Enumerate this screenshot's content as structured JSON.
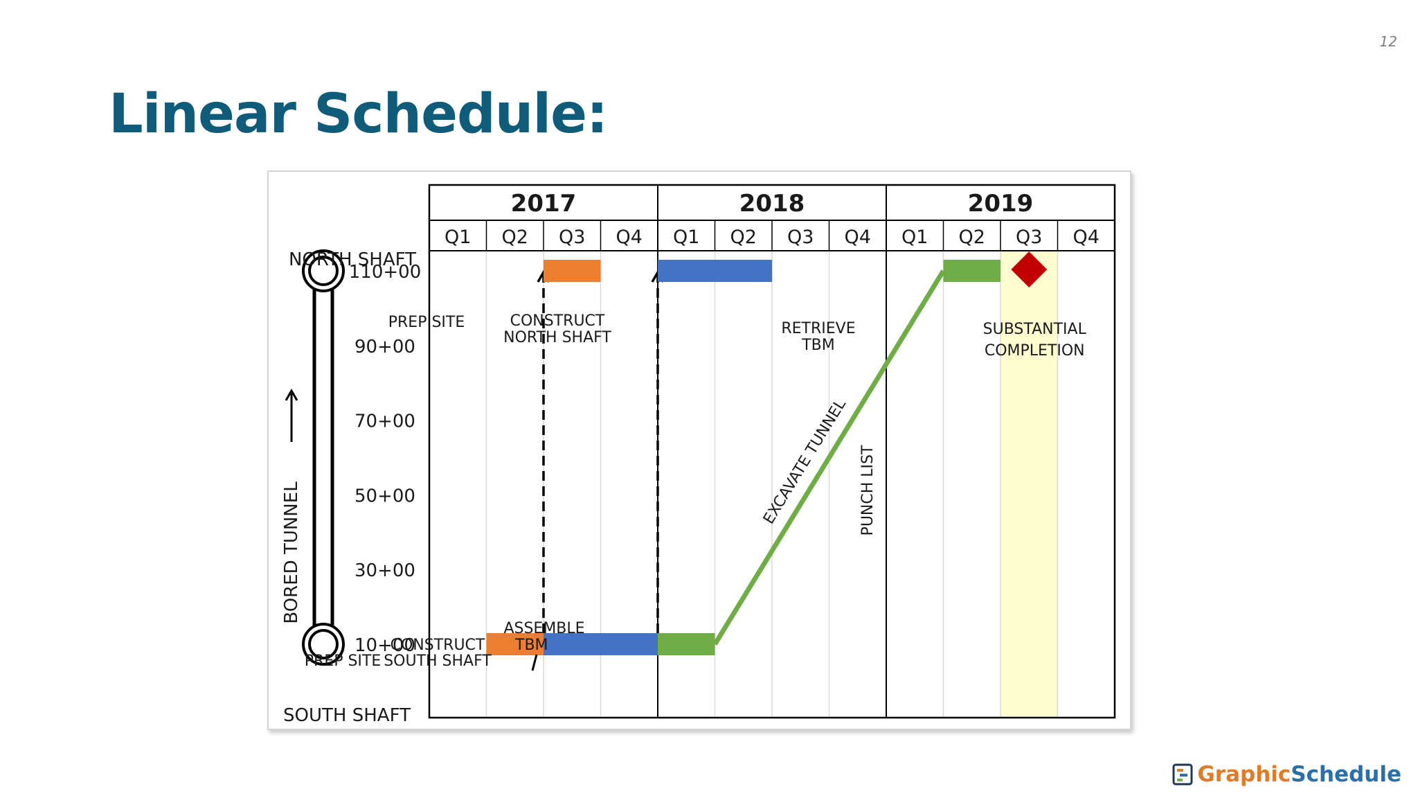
{
  "slide": {
    "page_number": "12",
    "title": "Linear Schedule:"
  },
  "branding": {
    "logo_icon": "graphicschedule-logo-icon",
    "part1": "Graphic",
    "part2": "Schedule"
  },
  "chart_data": {
    "type": "linear-schedule",
    "years": [
      "2017",
      "2018",
      "2019"
    ],
    "quarters": [
      "Q1",
      "Q2",
      "Q3",
      "Q4",
      "Q1",
      "Q2",
      "Q3",
      "Q4",
      "Q1",
      "Q2",
      "Q3",
      "Q4"
    ],
    "y_axis": {
      "label": "BORED TUNNEL",
      "top_label": "NORTH SHAFT",
      "bottom_label": "SOUTH SHAFT",
      "ticks": [
        {
          "label": "110+00",
          "value": 110
        },
        {
          "label": "90+00",
          "value": 90
        },
        {
          "label": "70+00",
          "value": 70
        },
        {
          "label": "50+00",
          "value": 50
        },
        {
          "label": "30+00",
          "value": 30
        },
        {
          "label": "10+00",
          "value": 10
        }
      ]
    },
    "bars": [
      {
        "name": "prep-site-south",
        "label": [
          "PREP SITE"
        ],
        "color": "#ed7d31",
        "start_q": 1,
        "end_q": 2,
        "station": 10
      },
      {
        "name": "construct-south-shaft",
        "label": [
          "CONSTRUCT",
          "SOUTH SHAFT"
        ],
        "color": "#4472c4",
        "start_q": 2,
        "end_q": 4,
        "station": 10
      },
      {
        "name": "assemble-tbm",
        "label": [
          "ASSEMBLE",
          "TBM"
        ],
        "color": "#70ad47",
        "start_q": 4,
        "end_q": 5,
        "station": 10
      },
      {
        "name": "prep-site-north",
        "label": [
          "PREP SITE"
        ],
        "color": "#ed7d31",
        "start_q": 2,
        "end_q": 3,
        "station": 110
      },
      {
        "name": "construct-north-shaft",
        "label": [
          "CONSTRUCT",
          "NORTH SHAFT"
        ],
        "color": "#4472c4",
        "start_q": 4,
        "end_q": 6,
        "station": 110
      },
      {
        "name": "retrieve-tbm",
        "label": [
          "RETRIEVE",
          "TBM"
        ],
        "color": "#70ad47",
        "start_q": 9,
        "end_q": 10,
        "station": 110
      }
    ],
    "excavate": {
      "label": "EXCAVATE TUNNEL",
      "color": "#70ad47",
      "from": {
        "q": 5,
        "station": 10
      },
      "to": {
        "q": 9,
        "station": 110
      }
    },
    "punch_list": {
      "label": "PUNCH LIST",
      "start_q": 10,
      "end_q": 11,
      "color": "#fdfdd0"
    },
    "milestone": {
      "label": [
        "SUBSTANTIAL",
        "COMPLETION"
      ],
      "q": 10.5,
      "station": 110,
      "color": "#c00000"
    },
    "mobilization_arrows": [
      {
        "name": "arrow-prep-north",
        "q": 2,
        "from_station": 10,
        "to_station": 110
      },
      {
        "name": "arrow-construct-north",
        "q": 4,
        "from_station": 10,
        "to_station": 110
      }
    ]
  }
}
